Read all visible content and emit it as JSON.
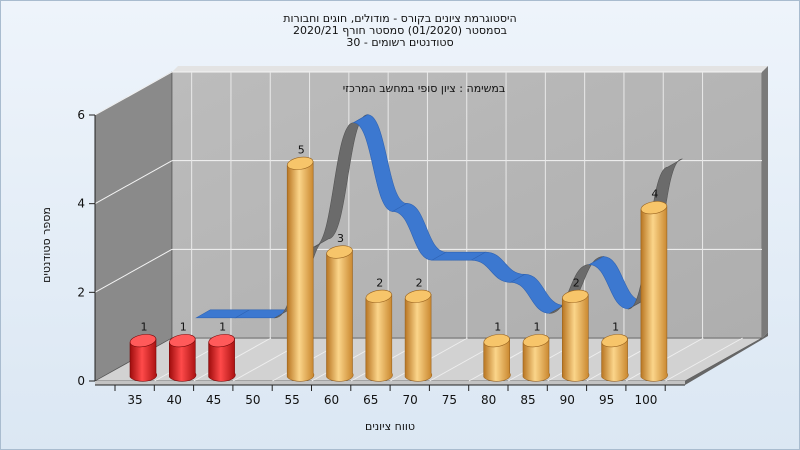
{
  "header": {
    "title_line1": "היסטוגרמת ציונים בקורס - מודולים, חוגים וחבורות",
    "title_line2": "בסמסטר (01/2020) סמסטר חורף 2020/21",
    "title_line3": "30 - סטודנטים רשומים"
  },
  "chart_data": {
    "type": "bar",
    "subtitle": "במשימה : ציון סופי במחשב המרכזי",
    "xlabel": "טווח ציונים",
    "ylabel": "מספר סטודנטים",
    "categories": [
      "35",
      "40",
      "45",
      "50",
      "55",
      "60",
      "65",
      "70",
      "75",
      "80",
      "85",
      "90",
      "95",
      "100"
    ],
    "values": [
      1,
      1,
      1,
      0,
      5,
      3,
      2,
      2,
      0,
      1,
      1,
      2,
      1,
      4
    ],
    "bar_colors": [
      "#d81c1c",
      "#d81c1c",
      "#d81c1c",
      "#e8a640",
      "#e8a640",
      "#e8a640",
      "#e8a640",
      "#e8a640",
      "#e8a640",
      "#e8a640",
      "#e8a640",
      "#e8a640",
      "#e8a640",
      "#e8a640"
    ],
    "ylim": [
      0,
      6
    ],
    "yticks": [
      0,
      2,
      4,
      6
    ],
    "grid": true,
    "curve": {
      "name": "",
      "type": "smooth-ribbon",
      "x": [
        "40",
        "45",
        "50",
        "55",
        "60",
        "65",
        "70",
        "75",
        "80",
        "85",
        "90",
        "95",
        "100"
      ],
      "y": [
        1.2,
        1.2,
        1.2,
        2.8,
        5.6,
        3.6,
        2.5,
        2.5,
        2.0,
        1.3,
        2.4,
        1.4,
        4.6
      ]
    }
  }
}
